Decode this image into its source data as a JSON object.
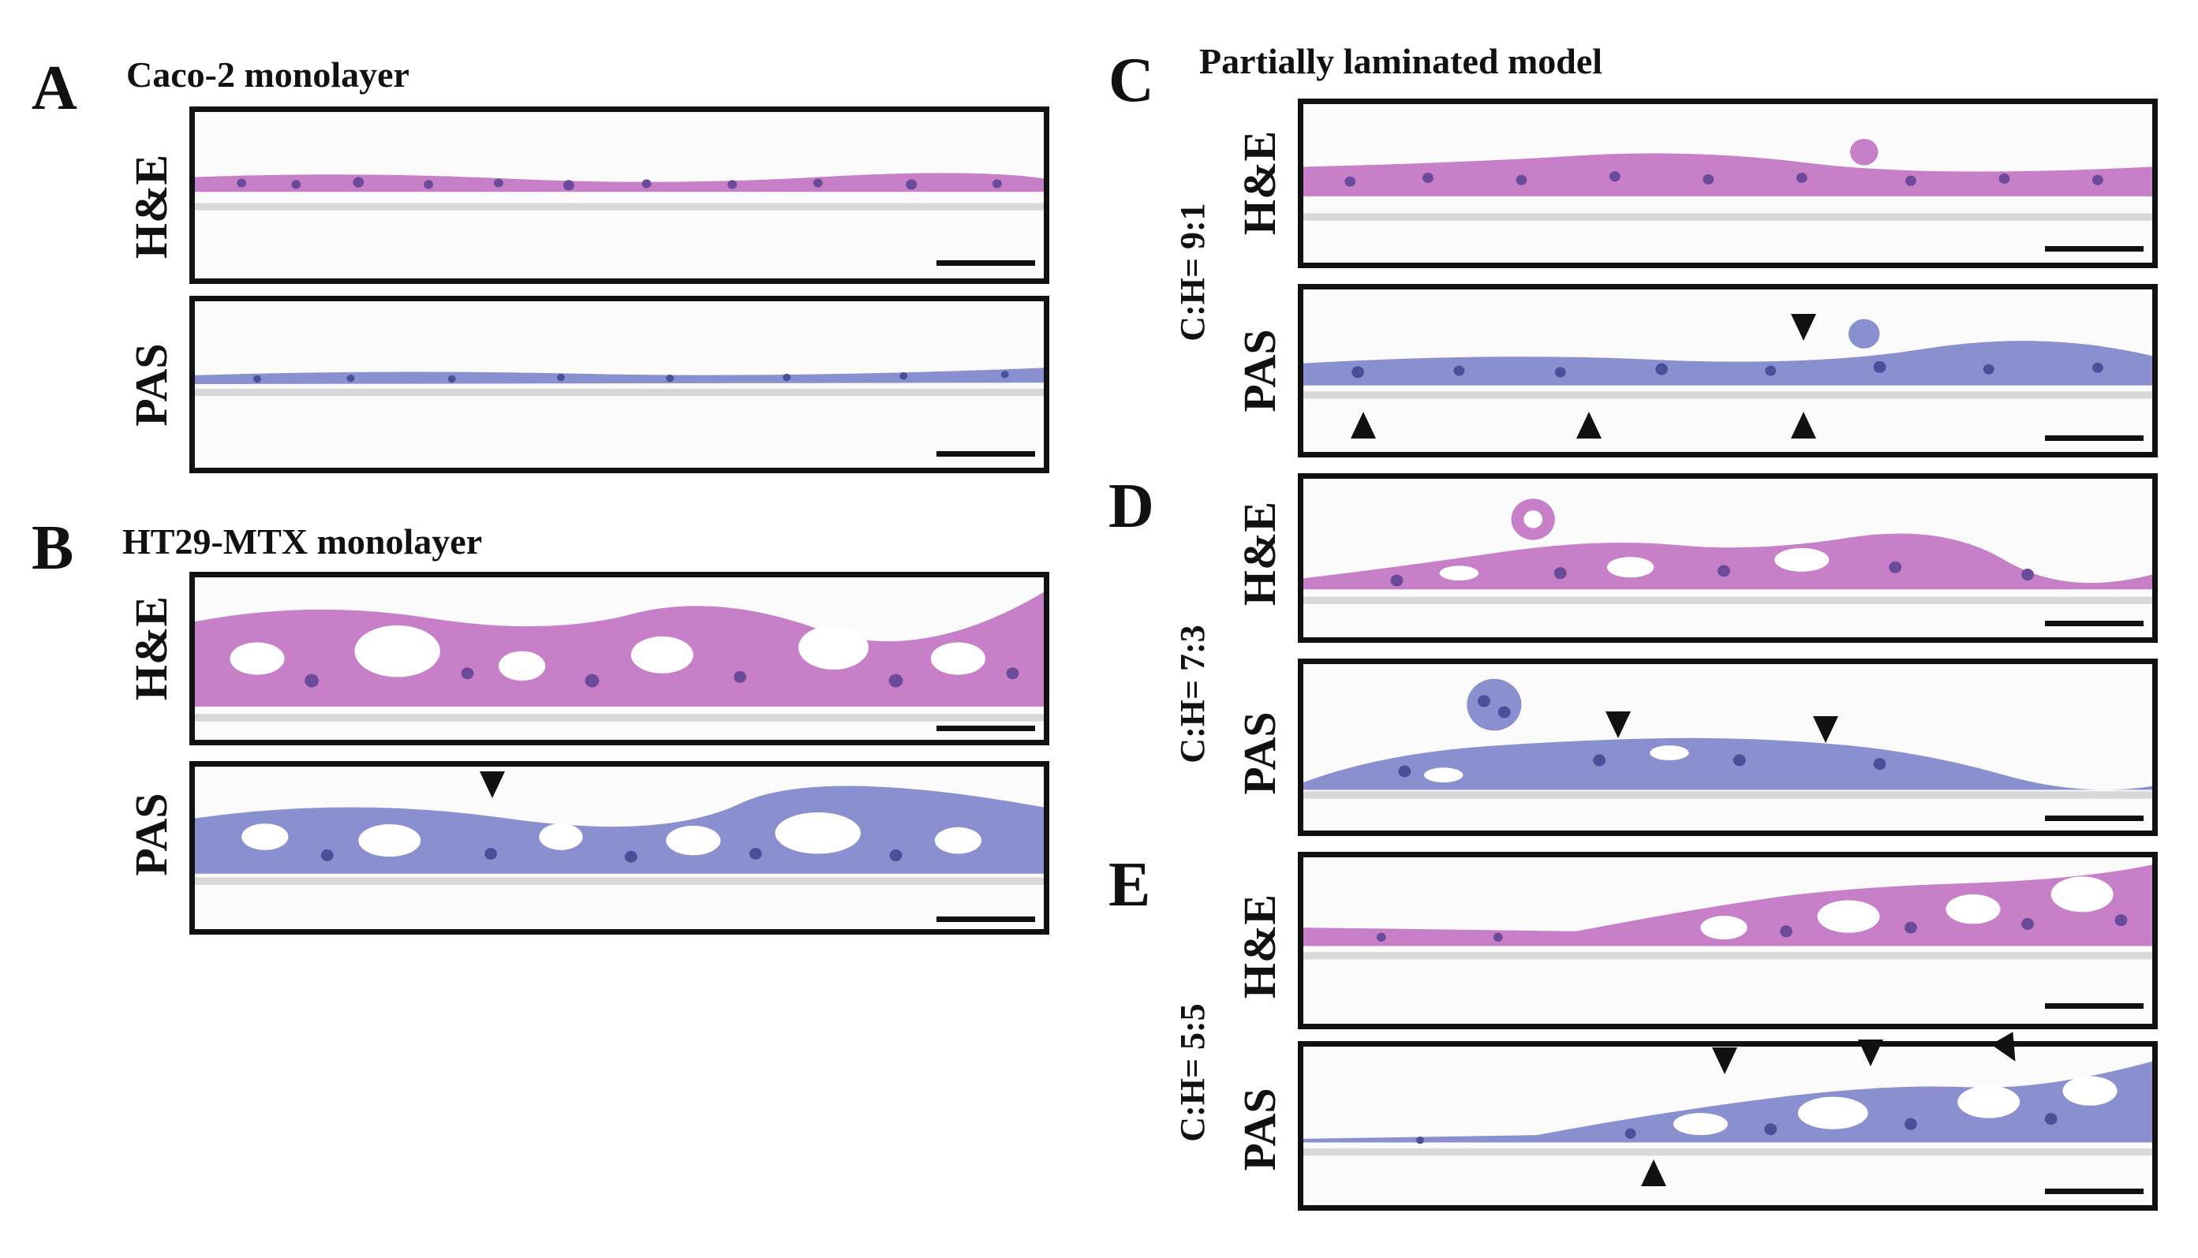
{
  "figure": {
    "panel_letters": {
      "a": "A",
      "b": "B",
      "c": "C",
      "d": "D",
      "e": "E"
    },
    "titles": {
      "a": "Caco-2 monolayer",
      "b": "HT29-MTX monolayer",
      "c": "Partially laminated model"
    },
    "ratios": {
      "c": "C:H= 9:1",
      "d": "C:H= 7:3",
      "e": "C:H= 5:5"
    },
    "stains": {
      "he": "H&E",
      "pas": "PAS"
    },
    "colors": {
      "he_tissue": "#c77fc7",
      "he_nuclei": "#6b4a9a",
      "pas_tissue": "#8a8fd0",
      "pas_nuclei": "#4a4f9a",
      "membrane": "#d8d8d8",
      "arrowhead": "#111111"
    }
  }
}
